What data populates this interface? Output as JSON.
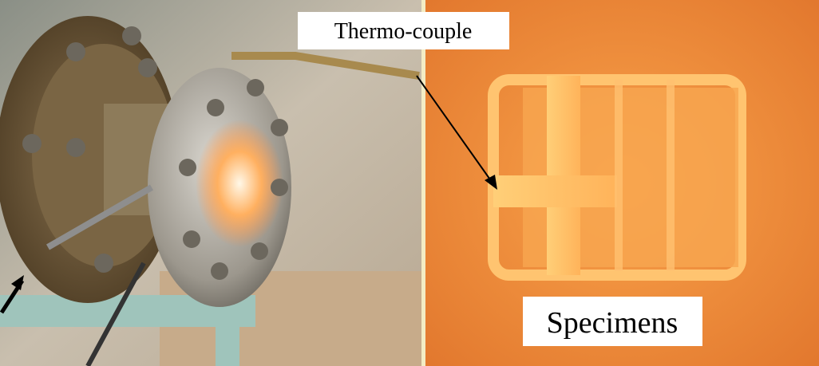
{
  "labels": {
    "thermocouple": "Thermo-couple",
    "specimens": "Specimens"
  }
}
